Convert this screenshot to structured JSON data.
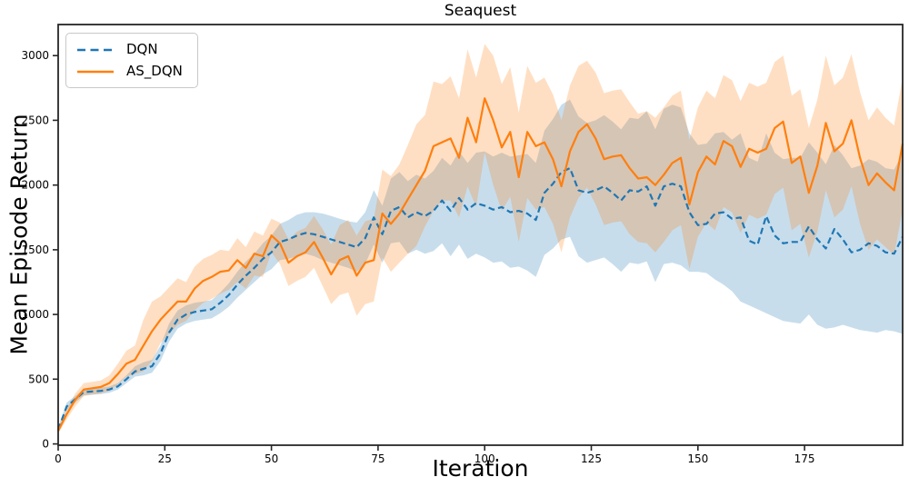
{
  "title": "Seaquest",
  "chart_data": {
    "type": "line",
    "title": "Seaquest",
    "xlabel": "Iteration",
    "ylabel": "Mean Episode Return",
    "xlim": [
      0,
      198
    ],
    "ylim": [
      -10,
      3240
    ],
    "xticks": [
      0,
      25,
      50,
      75,
      100,
      125,
      150,
      175
    ],
    "yticks": [
      0,
      500,
      1000,
      1500,
      2000,
      2500,
      3000
    ],
    "grid": false,
    "legend_position": "upper left",
    "band_alpha": 0.25,
    "spine_color": "#262626",
    "x": [
      0,
      2,
      4,
      6,
      8,
      10,
      12,
      14,
      16,
      18,
      20,
      22,
      24,
      26,
      28,
      30,
      32,
      34,
      36,
      38,
      40,
      42,
      44,
      46,
      48,
      50,
      52,
      54,
      56,
      58,
      60,
      62,
      64,
      66,
      68,
      70,
      72,
      74,
      76,
      78,
      80,
      82,
      84,
      86,
      88,
      90,
      92,
      94,
      96,
      98,
      100,
      102,
      104,
      106,
      108,
      110,
      112,
      114,
      116,
      118,
      120,
      122,
      124,
      126,
      128,
      130,
      132,
      134,
      136,
      138,
      140,
      142,
      144,
      146,
      148,
      150,
      152,
      154,
      156,
      158,
      160,
      162,
      164,
      166,
      168,
      170,
      172,
      174,
      176,
      178,
      180,
      182,
      184,
      186,
      188,
      190,
      192,
      194,
      196,
      198
    ],
    "series": [
      {
        "name": "DQN",
        "color": "#1f77b4",
        "linestyle": "dashed",
        "values": [
          110,
          290,
          345,
          400,
          405,
          410,
          420,
          445,
          500,
          560,
          580,
          600,
          700,
          860,
          960,
          1000,
          1020,
          1030,
          1040,
          1090,
          1150,
          1230,
          1300,
          1360,
          1430,
          1480,
          1560,
          1580,
          1610,
          1630,
          1620,
          1600,
          1580,
          1560,
          1540,
          1520,
          1590,
          1750,
          1620,
          1800,
          1830,
          1750,
          1790,
          1760,
          1800,
          1880,
          1800,
          1900,
          1810,
          1860,
          1840,
          1810,
          1830,
          1790,
          1800,
          1780,
          1730,
          1940,
          2010,
          2100,
          2130,
          1960,
          1940,
          1960,
          1990,
          1940,
          1880,
          1960,
          1950,
          1990,
          1840,
          1990,
          2010,
          1990,
          1790,
          1690,
          1700,
          1780,
          1790,
          1740,
          1750,
          1570,
          1540,
          1760,
          1610,
          1550,
          1560,
          1560,
          1680,
          1580,
          1510,
          1660,
          1580,
          1480,
          1500,
          1550,
          1530,
          1480,
          1470,
          1600
        ],
        "lower": [
          90,
          260,
          320,
          375,
          380,
          385,
          395,
          420,
          470,
          520,
          530,
          550,
          640,
          790,
          890,
          930,
          950,
          960,
          970,
          1010,
          1060,
          1130,
          1190,
          1250,
          1310,
          1350,
          1420,
          1430,
          1450,
          1470,
          1450,
          1420,
          1400,
          1380,
          1360,
          1330,
          1390,
          1540,
          1400,
          1550,
          1560,
          1470,
          1500,
          1470,
          1490,
          1550,
          1450,
          1540,
          1430,
          1470,
          1440,
          1400,
          1410,
          1360,
          1370,
          1340,
          1290,
          1460,
          1510,
          1580,
          1600,
          1450,
          1400,
          1420,
          1440,
          1390,
          1330,
          1400,
          1390,
          1410,
          1250,
          1390,
          1400,
          1380,
          1330,
          1330,
          1320,
          1270,
          1230,
          1180,
          1100,
          1070,
          1040,
          1010,
          980,
          950,
          940,
          930,
          1000,
          920,
          890,
          900,
          920,
          900,
          880,
          870,
          860,
          880,
          870,
          850
        ],
        "upper": [
          130,
          320,
          370,
          425,
          430,
          435,
          445,
          470,
          530,
          600,
          630,
          650,
          760,
          930,
          1030,
          1070,
          1090,
          1100,
          1110,
          1170,
          1240,
          1330,
          1410,
          1470,
          1550,
          1610,
          1700,
          1730,
          1770,
          1790,
          1790,
          1780,
          1760,
          1740,
          1720,
          1710,
          1790,
          1960,
          1840,
          2050,
          2100,
          2030,
          2080,
          2050,
          2110,
          2210,
          2150,
          2260,
          2170,
          2250,
          2260,
          2220,
          2250,
          2220,
          2230,
          2240,
          2170,
          2420,
          2510,
          2620,
          2660,
          2530,
          2480,
          2500,
          2540,
          2490,
          2430,
          2520,
          2510,
          2570,
          2430,
          2590,
          2620,
          2600,
          2400,
          2310,
          2320,
          2400,
          2410,
          2350,
          2400,
          2210,
          2180,
          2400,
          2250,
          2200,
          2210,
          2210,
          2330,
          2250,
          2160,
          2310,
          2230,
          2130,
          2150,
          2200,
          2180,
          2130,
          2120,
          2250
        ]
      },
      {
        "name": "AS_DQN",
        "color": "#ff7f0e",
        "linestyle": "solid",
        "values": [
          100,
          230,
          340,
          420,
          430,
          440,
          470,
          540,
          620,
          650,
          760,
          870,
          960,
          1030,
          1100,
          1100,
          1200,
          1260,
          1290,
          1330,
          1340,
          1420,
          1360,
          1470,
          1450,
          1610,
          1550,
          1400,
          1450,
          1480,
          1560,
          1440,
          1310,
          1420,
          1450,
          1300,
          1400,
          1420,
          1780,
          1700,
          1780,
          1890,
          2000,
          2110,
          2300,
          2330,
          2360,
          2210,
          2520,
          2330,
          2670,
          2500,
          2290,
          2410,
          2060,
          2410,
          2300,
          2330,
          2200,
          1990,
          2260,
          2410,
          2470,
          2360,
          2200,
          2220,
          2230,
          2130,
          2050,
          2060,
          2000,
          2080,
          2170,
          2210,
          1850,
          2100,
          2220,
          2160,
          2340,
          2300,
          2140,
          2280,
          2250,
          2280,
          2440,
          2490,
          2170,
          2220,
          1940,
          2150,
          2480,
          2260,
          2320,
          2500,
          2210,
          2000,
          2090,
          2020,
          1960,
          2320
        ],
        "lower": [
          80,
          190,
          290,
          370,
          380,
          390,
          410,
          460,
          520,
          540,
          560,
          640,
          780,
          850,
          920,
          950,
          1030,
          1090,
          1120,
          1160,
          1190,
          1250,
          1200,
          1300,
          1290,
          1480,
          1390,
          1220,
          1260,
          1290,
          1360,
          1220,
          1080,
          1150,
          1170,
          990,
          1080,
          1100,
          1440,
          1330,
          1400,
          1470,
          1530,
          1680,
          1800,
          1880,
          1880,
          1750,
          1990,
          1830,
          2250,
          2000,
          1800,
          1910,
          1560,
          1900,
          1810,
          1830,
          1700,
          1480,
          1750,
          1900,
          1980,
          1850,
          1690,
          1710,
          1720,
          1620,
          1560,
          1550,
          1480,
          1560,
          1650,
          1690,
          1350,
          1600,
          1710,
          1650,
          1830,
          1790,
          1630,
          1770,
          1740,
          1770,
          1930,
          1980,
          1650,
          1700,
          1440,
          1640,
          1960,
          1750,
          1810,
          1990,
          1700,
          1500,
          1580,
          1520,
          1460,
          1810
        ],
        "upper": [
          120,
          270,
          390,
          470,
          480,
          490,
          530,
          620,
          720,
          760,
          960,
          1100,
          1140,
          1210,
          1280,
          1250,
          1370,
          1430,
          1460,
          1500,
          1490,
          1590,
          1520,
          1640,
          1610,
          1740,
          1710,
          1580,
          1640,
          1670,
          1760,
          1660,
          1540,
          1690,
          1730,
          1610,
          1720,
          1740,
          2120,
          2070,
          2160,
          2310,
          2470,
          2540,
          2800,
          2780,
          2840,
          2670,
          3050,
          2830,
          3090,
          3000,
          2780,
          2910,
          2560,
          2920,
          2790,
          2830,
          2700,
          2500,
          2770,
          2920,
          2960,
          2870,
          2710,
          2730,
          2740,
          2640,
          2550,
          2570,
          2520,
          2600,
          2690,
          2730,
          2350,
          2600,
          2730,
          2670,
          2850,
          2810,
          2650,
          2790,
          2760,
          2790,
          2950,
          3000,
          2690,
          2740,
          2440,
          2660,
          3000,
          2770,
          2830,
          3010,
          2720,
          2500,
          2600,
          2520,
          2460,
          2830
        ]
      }
    ]
  }
}
